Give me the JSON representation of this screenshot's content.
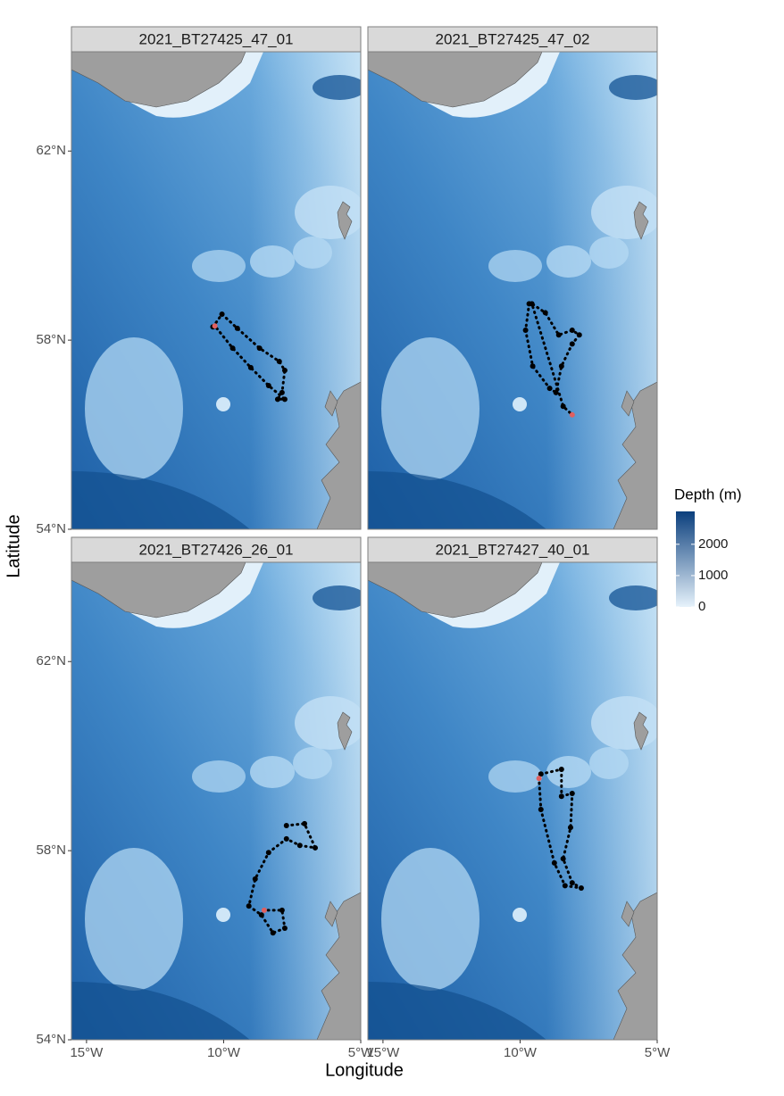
{
  "chart_data": {
    "type": "map",
    "x_label": "Longitude",
    "y_label": "Latitude",
    "xlim": [
      -15.55,
      -5
    ],
    "ylim": [
      54,
      64.1
    ],
    "xticks": [
      {
        "value": -15,
        "label": "15°W"
      },
      {
        "value": -10,
        "label": "10°W"
      },
      {
        "value": -5,
        "label": "5°W"
      }
    ],
    "yticks": [
      {
        "value": 54,
        "label": "54°N"
      },
      {
        "value": 58,
        "label": "58°N"
      },
      {
        "value": 62,
        "label": "62°N"
      }
    ],
    "track_color": "#000000",
    "end_color": "#e06060",
    "panels": [
      {
        "title": "2021_BT27425_47_01",
        "x": [
          -10.39,
          -10.06,
          -9.5,
          -8.69,
          -7.97,
          -7.77,
          -7.87,
          -8.03,
          -7.77,
          -8.36,
          -9.01,
          -9.67,
          -10.32
        ],
        "y": [
          58.28,
          58.55,
          58.25,
          57.83,
          57.55,
          57.36,
          56.89,
          56.75,
          56.75,
          57.04,
          57.42,
          57.83,
          58.3
        ]
      },
      {
        "title": "2021_BT27425_47_02",
        "x": [
          -9.67,
          -9.8,
          -9.54,
          -8.92,
          -8.69,
          -8.49,
          -8.1,
          -7.84,
          -8.1,
          -8.59,
          -9.08,
          -9.57,
          -8.43,
          -8.1
        ],
        "y": [
          58.77,
          58.21,
          57.45,
          56.98,
          56.89,
          57.45,
          57.92,
          58.11,
          58.21,
          58.11,
          58.58,
          58.77,
          56.6,
          56.42
        ]
      },
      {
        "title": "2021_BT27426_26_01",
        "x": [
          -7.71,
          -7.05,
          -6.66,
          -7.22,
          -7.71,
          -8.36,
          -8.85,
          -9.08,
          -8.62,
          -8.2,
          -7.77,
          -7.87,
          -8.52
        ],
        "y": [
          58.53,
          58.57,
          58.06,
          58.11,
          58.25,
          57.96,
          57.4,
          56.83,
          56.64,
          56.26,
          56.36,
          56.74,
          56.74
        ]
      },
      {
        "title": "2021_BT27427_40_01",
        "x": [
          -9.24,
          -8.49,
          -8.49,
          -8.1,
          -8.16,
          -8.43,
          -8.1,
          -7.77,
          -8.36,
          -8.75,
          -9.24,
          -9.31
        ],
        "y": [
          59.62,
          59.72,
          59.15,
          59.21,
          58.49,
          57.83,
          57.32,
          57.21,
          57.26,
          57.74,
          58.87,
          59.53
        ]
      }
    ],
    "legend": {
      "title": "Depth (m)",
      "position": "right",
      "lim": [
        0,
        3050
      ],
      "ticks": [
        0,
        1000,
        2000
      ],
      "colors": [
        "#e6f2fb",
        "#0b3f7d"
      ]
    }
  }
}
